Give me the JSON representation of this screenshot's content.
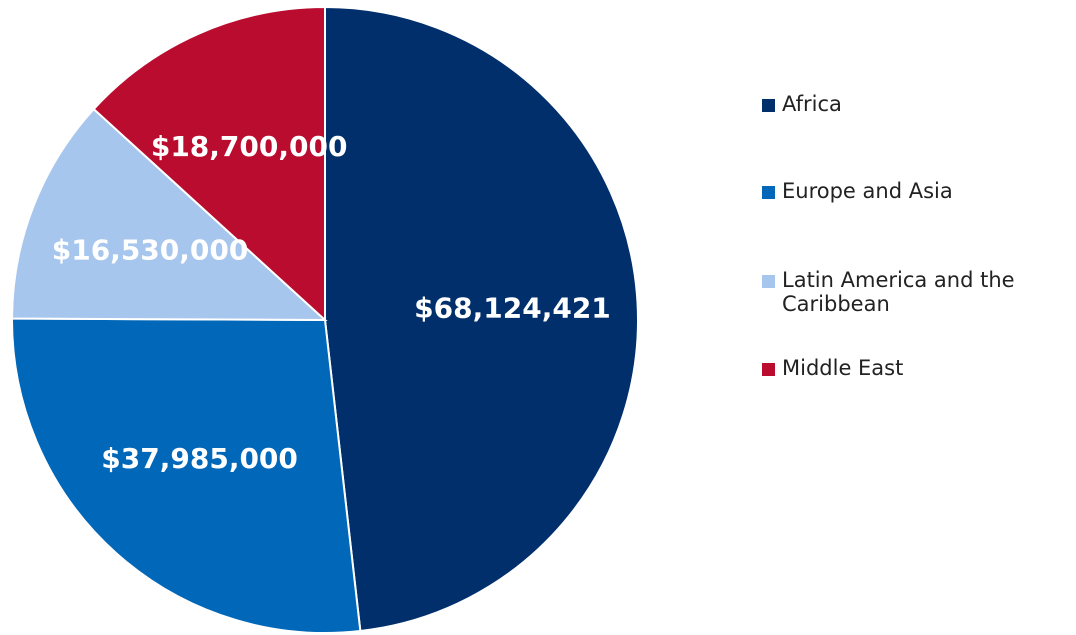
{
  "chart_data": {
    "type": "pie",
    "categories": [
      "Africa",
      "Europe and Asia",
      "Latin America and the Caribbean",
      "Middle East"
    ],
    "values": [
      68124421,
      37985000,
      16530000,
      18700000
    ],
    "value_labels": [
      "$68,124,421",
      "$37,985,000",
      "$16,530,000",
      "$18,700,000"
    ],
    "colors": [
      "#002f6c",
      "#0067b9",
      "#a7c6ed",
      "#ba0c2f"
    ],
    "legend": "right"
  }
}
